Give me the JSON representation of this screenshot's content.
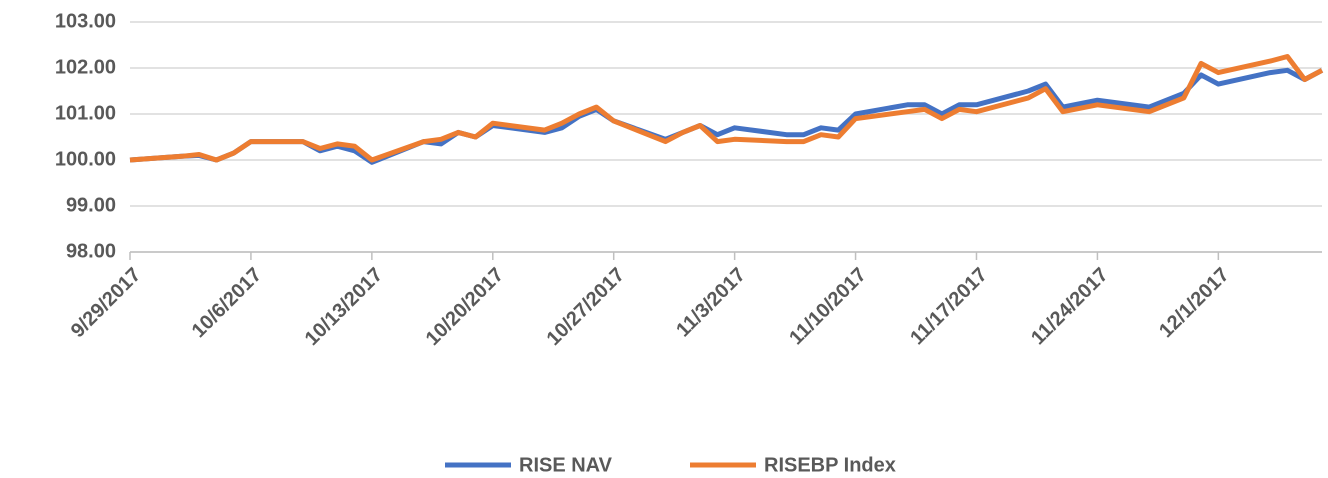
{
  "chart_data": {
    "type": "line",
    "x": [
      "9/29/2017",
      "10/2/2017",
      "10/3/2017",
      "10/4/2017",
      "10/5/2017",
      "10/6/2017",
      "10/9/2017",
      "10/10/2017",
      "10/11/2017",
      "10/12/2017",
      "10/13/2017",
      "10/16/2017",
      "10/17/2017",
      "10/18/2017",
      "10/19/2017",
      "10/20/2017",
      "10/23/2017",
      "10/24/2017",
      "10/25/2017",
      "10/26/2017",
      "10/27/2017",
      "10/30/2017",
      "10/31/2017",
      "11/1/2017",
      "11/2/2017",
      "11/3/2017",
      "11/6/2017",
      "11/7/2017",
      "11/8/2017",
      "11/9/2017",
      "11/10/2017",
      "11/13/2017",
      "11/14/2017",
      "11/15/2017",
      "11/16/2017",
      "11/17/2017",
      "11/20/2017",
      "11/21/2017",
      "11/22/2017",
      "11/24/2017",
      "11/27/2017",
      "11/28/2017",
      "11/29/2017",
      "11/30/2017",
      "12/1/2017",
      "12/4/2017",
      "12/5/2017",
      "12/6/2017",
      "12/7/2017"
    ],
    "series": [
      {
        "name": "RISE NAV",
        "color": "#4472c4",
        "values": [
          100.0,
          100.08,
          100.1,
          100.0,
          100.15,
          100.4,
          100.4,
          100.2,
          100.3,
          100.2,
          99.95,
          100.4,
          100.35,
          100.6,
          100.5,
          100.75,
          100.6,
          100.7,
          100.95,
          101.1,
          100.85,
          100.45,
          100.6,
          100.75,
          100.55,
          100.7,
          100.55,
          100.55,
          100.7,
          100.65,
          101.0,
          101.2,
          101.2,
          101.0,
          101.2,
          101.2,
          101.5,
          101.65,
          101.15,
          101.3,
          101.15,
          101.3,
          101.45,
          101.85,
          101.65,
          101.9,
          101.95,
          101.75,
          101.95
        ]
      },
      {
        "name": "RISEBP Index",
        "color": "#ed7d31",
        "values": [
          100.0,
          100.08,
          100.12,
          100.0,
          100.15,
          100.4,
          100.4,
          100.25,
          100.35,
          100.3,
          100.0,
          100.4,
          100.45,
          100.6,
          100.5,
          100.8,
          100.65,
          100.8,
          101.0,
          101.15,
          100.85,
          100.4,
          100.6,
          100.75,
          100.4,
          100.45,
          100.4,
          100.4,
          100.55,
          100.5,
          100.9,
          101.05,
          101.1,
          100.9,
          101.1,
          101.05,
          101.35,
          101.55,
          101.05,
          101.2,
          101.05,
          101.2,
          101.35,
          102.1,
          101.9,
          102.15,
          102.25,
          101.75,
          101.95
        ]
      }
    ],
    "ylim": [
      98,
      103
    ],
    "yticks": [
      {
        "value": 98,
        "label": "98.00"
      },
      {
        "value": 99,
        "label": "99.00"
      },
      {
        "value": 100,
        "label": "100.00"
      },
      {
        "value": 101,
        "label": "101.00"
      },
      {
        "value": 102,
        "label": "102.00"
      },
      {
        "value": 103,
        "label": "103.00"
      }
    ],
    "xticks": [
      "9/29/2017",
      "10/6/2017",
      "10/13/2017",
      "10/20/2017",
      "10/27/2017",
      "11/3/2017",
      "11/10/2017",
      "11/17/2017",
      "11/24/2017",
      "12/1/2017"
    ],
    "grid": true
  }
}
